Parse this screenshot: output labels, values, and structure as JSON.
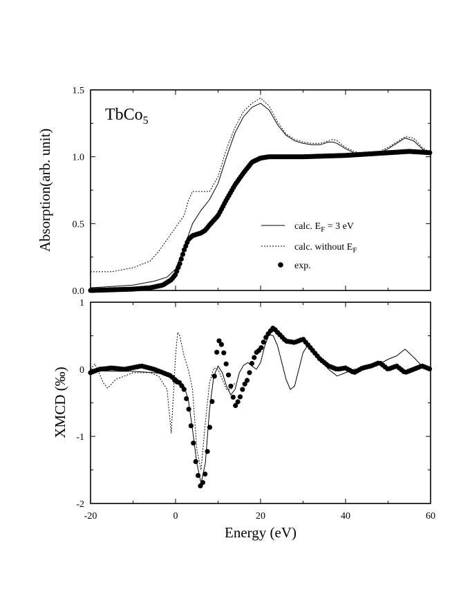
{
  "chart_data": [
    {
      "type": "line",
      "panel": "top",
      "sample_label": {
        "base": "TbCo",
        "sub": "5"
      },
      "ylabel": "Absorption(arb. unit)",
      "xlim": [
        -20,
        60
      ],
      "ylim": [
        0.0,
        1.5
      ],
      "yticks": [
        "0.0",
        "0.5",
        "1.0",
        "1.5"
      ],
      "legend": {
        "position": "lower-right",
        "entries": [
          {
            "prefix": "calc. E",
            "sub": "F",
            "suffix": " = 3 eV",
            "style": "solid"
          },
          {
            "prefix": "calc. without E",
            "sub": "F",
            "suffix": "",
            "style": "dotted"
          },
          {
            "prefix": "exp.",
            "sub": "",
            "suffix": "",
            "style": "marker"
          }
        ]
      },
      "series": [
        {
          "name": "calc. EF = 3 eV",
          "style": "solid",
          "points": [
            [
              -20,
              0.02
            ],
            [
              -15,
              0.03
            ],
            [
              -10,
              0.04
            ],
            [
              -5,
              0.07
            ],
            [
              -2,
              0.1
            ],
            [
              0,
              0.16
            ],
            [
              2,
              0.32
            ],
            [
              4,
              0.5
            ],
            [
              6,
              0.6
            ],
            [
              7,
              0.64
            ],
            [
              8,
              0.68
            ],
            [
              10,
              0.8
            ],
            [
              12,
              1.0
            ],
            [
              14,
              1.18
            ],
            [
              16,
              1.3
            ],
            [
              18,
              1.37
            ],
            [
              20,
              1.4
            ],
            [
              22,
              1.35
            ],
            [
              24,
              1.24
            ],
            [
              26,
              1.16
            ],
            [
              28,
              1.12
            ],
            [
              30,
              1.1
            ],
            [
              32,
              1.09
            ],
            [
              34,
              1.09
            ],
            [
              36,
              1.11
            ],
            [
              37,
              1.11
            ],
            [
              38,
              1.1
            ],
            [
              40,
              1.06
            ],
            [
              42,
              1.03
            ],
            [
              44,
              1.01
            ],
            [
              46,
              1.01
            ],
            [
              48,
              1.03
            ],
            [
              50,
              1.06
            ],
            [
              52,
              1.1
            ],
            [
              54,
              1.14
            ],
            [
              56,
              1.12
            ],
            [
              58,
              1.06
            ],
            [
              60,
              1.02
            ]
          ]
        },
        {
          "name": "calc. without EF",
          "style": "dotted",
          "points": [
            [
              -20,
              0.14
            ],
            [
              -15,
              0.14
            ],
            [
              -10,
              0.17
            ],
            [
              -6,
              0.22
            ],
            [
              -4,
              0.29
            ],
            [
              -2,
              0.38
            ],
            [
              0,
              0.47
            ],
            [
              2,
              0.56
            ],
            [
              3,
              0.67
            ],
            [
              4,
              0.74
            ],
            [
              6,
              0.74
            ],
            [
              8,
              0.74
            ],
            [
              10,
              0.85
            ],
            [
              12,
              1.06
            ],
            [
              14,
              1.22
            ],
            [
              16,
              1.34
            ],
            [
              18,
              1.4
            ],
            [
              20,
              1.44
            ],
            [
              22,
              1.38
            ],
            [
              24,
              1.26
            ],
            [
              26,
              1.17
            ],
            [
              28,
              1.13
            ],
            [
              30,
              1.11
            ],
            [
              32,
              1.1
            ],
            [
              34,
              1.1
            ],
            [
              36,
              1.12
            ],
            [
              37,
              1.13
            ],
            [
              38,
              1.12
            ],
            [
              40,
              1.07
            ],
            [
              42,
              1.04
            ],
            [
              44,
              1.02
            ],
            [
              46,
              1.02
            ],
            [
              48,
              1.04
            ],
            [
              50,
              1.07
            ],
            [
              52,
              1.11
            ],
            [
              54,
              1.15
            ],
            [
              56,
              1.14
            ],
            [
              58,
              1.07
            ],
            [
              60,
              1.03
            ]
          ]
        },
        {
          "name": "exp.",
          "style": "marker",
          "points": [
            [
              -20,
              0.0
            ],
            [
              -10,
              0.01
            ],
            [
              -6,
              0.02
            ],
            [
              -3,
              0.04
            ],
            [
              -1,
              0.08
            ],
            [
              0,
              0.12
            ],
            [
              1,
              0.2
            ],
            [
              2,
              0.3
            ],
            [
              3,
              0.38
            ],
            [
              4,
              0.41
            ],
            [
              5,
              0.42
            ],
            [
              6,
              0.43
            ],
            [
              7,
              0.45
            ],
            [
              8,
              0.49
            ],
            [
              10,
              0.56
            ],
            [
              12,
              0.68
            ],
            [
              14,
              0.79
            ],
            [
              16,
              0.88
            ],
            [
              18,
              0.96
            ],
            [
              20,
              0.99
            ],
            [
              22,
              1.0
            ],
            [
              30,
              1.0
            ],
            [
              40,
              1.01
            ],
            [
              50,
              1.03
            ],
            [
              55,
              1.04
            ],
            [
              60,
              1.03
            ]
          ]
        }
      ]
    },
    {
      "type": "line",
      "panel": "bottom",
      "ylabel": "XMCD (‰)",
      "xlabel": "Energy (eV)",
      "xlim": [
        -20,
        60
      ],
      "ylim": [
        -2,
        1
      ],
      "yticks": [
        "-2",
        "-1",
        "0",
        "1"
      ],
      "xticks": [
        "-20",
        "0",
        "20",
        "40",
        "60"
      ],
      "series": [
        {
          "name": "calc. EF = 3 eV",
          "style": "solid",
          "points": [
            [
              -20,
              -0.02
            ],
            [
              -15,
              -0.03
            ],
            [
              -10,
              -0.03
            ],
            [
              -5,
              -0.05
            ],
            [
              -2,
              -0.08
            ],
            [
              0,
              -0.12
            ],
            [
              2,
              -0.25
            ],
            [
              3,
              -0.45
            ],
            [
              4,
              -0.9
            ],
            [
              5,
              -1.4
            ],
            [
              6,
              -1.7
            ],
            [
              7,
              -1.4
            ],
            [
              8,
              -0.6
            ],
            [
              9,
              -0.1
            ],
            [
              10,
              0.05
            ],
            [
              11,
              -0.05
            ],
            [
              12,
              -0.25
            ],
            [
              13,
              -0.38
            ],
            [
              14,
              -0.3
            ],
            [
              15,
              -0.05
            ],
            [
              16,
              0.06
            ],
            [
              17,
              0.1
            ],
            [
              18,
              0.05
            ],
            [
              19,
              0.0
            ],
            [
              20,
              0.1
            ],
            [
              21,
              0.35
            ],
            [
              22,
              0.52
            ],
            [
              23,
              0.5
            ],
            [
              24,
              0.35
            ],
            [
              25,
              0.1
            ],
            [
              26,
              -0.15
            ],
            [
              27,
              -0.3
            ],
            [
              28,
              -0.25
            ],
            [
              29,
              0.0
            ],
            [
              30,
              0.25
            ],
            [
              31,
              0.35
            ],
            [
              32,
              0.3
            ],
            [
              34,
              0.15
            ],
            [
              36,
              0.0
            ],
            [
              38,
              -0.1
            ],
            [
              40,
              -0.05
            ],
            [
              42,
              0.0
            ],
            [
              46,
              0.02
            ],
            [
              48,
              0.08
            ],
            [
              50,
              0.15
            ],
            [
              52,
              0.2
            ],
            [
              54,
              0.3
            ],
            [
              56,
              0.18
            ],
            [
              58,
              0.05
            ],
            [
              60,
              0.0
            ]
          ]
        },
        {
          "name": "calc. without EF",
          "style": "dotted",
          "points": [
            [
              -20,
              0.0
            ],
            [
              -19,
              0.08
            ],
            [
              -18,
              -0.05
            ],
            [
              -17,
              -0.2
            ],
            [
              -16,
              -0.28
            ],
            [
              -14,
              -0.15
            ],
            [
              -10,
              -0.05
            ],
            [
              -6,
              -0.05
            ],
            [
              -4,
              -0.1
            ],
            [
              -2,
              -0.3
            ],
            [
              -1,
              -0.95
            ],
            [
              0,
              0.2
            ],
            [
              0.5,
              0.55
            ],
            [
              1,
              0.5
            ],
            [
              2,
              0.2
            ],
            [
              3,
              0.0
            ],
            [
              4,
              -0.3
            ],
            [
              5,
              -1.2
            ],
            [
              6,
              -1.5
            ],
            [
              7,
              -0.8
            ],
            [
              8,
              -0.2
            ],
            [
              9,
              0.02
            ],
            [
              10,
              0.0
            ],
            [
              11,
              -0.15
            ],
            [
              12,
              -0.3
            ],
            [
              13,
              -0.3
            ],
            [
              14,
              -0.2
            ]
          ]
        },
        {
          "name": "exp.",
          "style": "marker",
          "points": [
            [
              -20,
              -0.05
            ],
            [
              -18,
              0.0
            ],
            [
              -15,
              0.02
            ],
            [
              -12,
              0.0
            ],
            [
              -8,
              0.05
            ],
            [
              -5,
              0.0
            ],
            [
              -3,
              -0.05
            ],
            [
              -1,
              -0.1
            ],
            [
              0,
              -0.18
            ],
            [
              1,
              -0.2
            ],
            [
              2,
              -0.3
            ],
            [
              3,
              -0.55
            ],
            [
              4,
              -1.0
            ],
            [
              5,
              -1.5
            ],
            [
              6,
              -1.78
            ],
            [
              7,
              -1.55
            ],
            [
              8,
              -0.9
            ],
            [
              9,
              -0.2
            ],
            [
              10,
              0.45
            ],
            [
              11,
              0.35
            ],
            [
              12,
              0.05
            ],
            [
              13,
              -0.25
            ],
            [
              14,
              -0.55
            ],
            [
              15,
              -0.45
            ],
            [
              16,
              -0.25
            ],
            [
              17,
              -0.15
            ],
            [
              18,
              0.1
            ],
            [
              19,
              0.25
            ],
            [
              20,
              0.3
            ],
            [
              21,
              0.45
            ],
            [
              22,
              0.55
            ],
            [
              23,
              0.62
            ],
            [
              24,
              0.55
            ],
            [
              26,
              0.42
            ],
            [
              28,
              0.4
            ],
            [
              30,
              0.45
            ],
            [
              32,
              0.3
            ],
            [
              34,
              0.15
            ],
            [
              36,
              0.05
            ],
            [
              38,
              0.0
            ],
            [
              40,
              0.02
            ],
            [
              42,
              -0.05
            ],
            [
              44,
              0.02
            ],
            [
              46,
              0.05
            ],
            [
              48,
              0.1
            ],
            [
              50,
              0.0
            ],
            [
              52,
              0.05
            ],
            [
              54,
              -0.05
            ],
            [
              56,
              0.0
            ],
            [
              58,
              0.05
            ],
            [
              60,
              0.0
            ]
          ]
        }
      ]
    }
  ]
}
